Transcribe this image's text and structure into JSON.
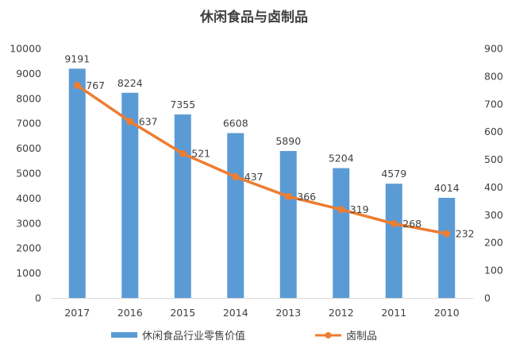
{
  "chart_data": {
    "type": "bar+line",
    "title": "休闲食品与卤制品",
    "categories": [
      "2017",
      "2016",
      "2015",
      "2014",
      "2013",
      "2012",
      "2011",
      "2010"
    ],
    "series": [
      {
        "name": "休闲食品行业零售价值",
        "type": "bar",
        "axis": "left",
        "color": "#5b9bd5",
        "values": [
          9191,
          8224,
          7355,
          6608,
          5890,
          5204,
          4579,
          4014
        ]
      },
      {
        "name": "卤制品",
        "type": "line",
        "axis": "right",
        "color": "#ed7d31",
        "values": [
          767,
          637,
          521,
          437,
          366,
          319,
          268,
          232
        ]
      }
    ],
    "y_left": {
      "min": 0,
      "max": 10000,
      "step": 1000,
      "ticks": [
        "0",
        "1000",
        "2000",
        "3000",
        "4000",
        "5000",
        "6000",
        "7000",
        "8000",
        "9000",
        "10000"
      ]
    },
    "y_right": {
      "min": 0,
      "max": 900,
      "step": 100,
      "ticks": [
        "0",
        "100",
        "200",
        "300",
        "400",
        "500",
        "600",
        "700",
        "800",
        "900"
      ]
    },
    "grid": false,
    "legend": "bottom"
  }
}
